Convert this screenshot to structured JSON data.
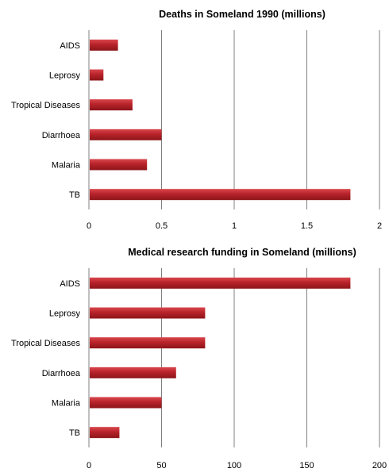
{
  "chart_data": [
    {
      "type": "bar",
      "orientation": "horizontal",
      "title": "Deaths in Someland  1990  (millions)",
      "xlabel": "",
      "ylabel": "",
      "categories": [
        "AIDS",
        "Leprosy",
        "Tropical Diseases",
        "Diarrhoea",
        "Malaria",
        "TB"
      ],
      "values": [
        0.2,
        0.1,
        0.3,
        0.5,
        0.4,
        1.8
      ],
      "xlim": [
        0,
        2
      ],
      "ticks": [
        "0",
        "0.5",
        "1",
        "1.5",
        "2"
      ],
      "tick_values": [
        0,
        0.5,
        1,
        1.5,
        2
      ],
      "grid": true,
      "legend": "none",
      "bar_color": "#b8232a"
    },
    {
      "type": "bar",
      "orientation": "horizontal",
      "title": "Medical research funding in Someland  (millions)",
      "xlabel": "",
      "ylabel": "",
      "categories": [
        "AIDS",
        "Leprosy",
        "Tropical Diseases",
        "Diarrhoea",
        "Malaria",
        "TB"
      ],
      "values": [
        180,
        80,
        80,
        60,
        50,
        21
      ],
      "xlim": [
        0,
        200
      ],
      "ticks": [
        "0",
        "50",
        "100",
        "150",
        "200"
      ],
      "tick_values": [
        0,
        50,
        100,
        150,
        200
      ],
      "grid": true,
      "legend": "none",
      "bar_color": "#b8232a"
    }
  ]
}
